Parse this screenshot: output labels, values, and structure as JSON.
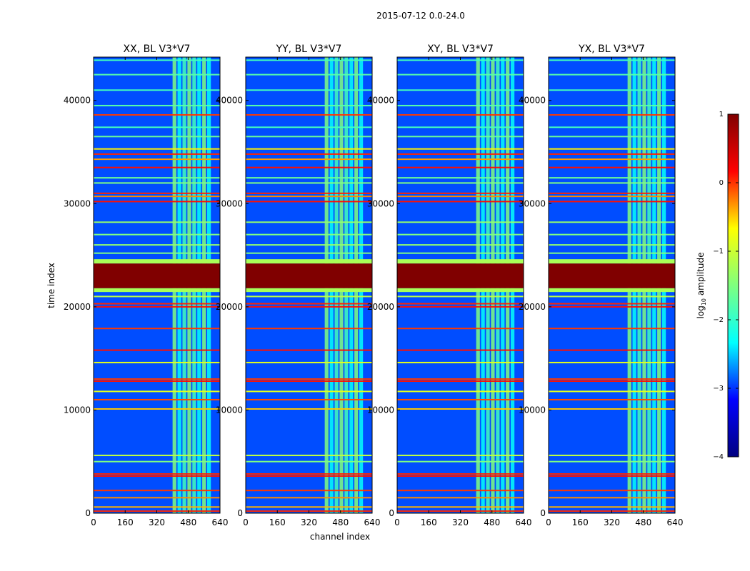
{
  "chart_data": {
    "type": "heatmap",
    "suptitle": "2015-07-12 0.0-24.0",
    "xlabel": "channel index",
    "ylabel": "time index",
    "xlim": [
      0,
      640
    ],
    "ylim": [
      0,
      44200
    ],
    "xticks": [
      0,
      160,
      320,
      480,
      640
    ],
    "yticks": [
      0,
      10000,
      20000,
      30000,
      40000
    ],
    "panels": [
      {
        "title": "XX, BL V3*V7"
      },
      {
        "title": "YY, BL V3*V7"
      },
      {
        "title": "XY, BL V3*V7"
      },
      {
        "title": "YX, BL V3*V7"
      }
    ],
    "colorbar": {
      "label": "log",
      "label_sub": "10",
      "label_rest": " amplitude",
      "range": [
        -4,
        1
      ],
      "ticks": [
        1,
        0,
        -1,
        -2,
        -3,
        -4
      ],
      "tick_labels": [
        "1",
        "0",
        "−1",
        "−2",
        "−3",
        "−4"
      ],
      "colormap": "jet",
      "colormap_stops": [
        "#000080",
        "#0000ff",
        "#00ffff",
        "#7fff7f",
        "#ffff00",
        "#ff0000",
        "#800000"
      ]
    },
    "features": {
      "background_level": -3.0,
      "saturated_time_range": [
        21800,
        24200
      ],
      "saturated_level": 1,
      "rfi_channel_band": [
        400,
        600
      ],
      "rfi_channel_band_level": -1.8,
      "horizontal_flag_bands": [
        {
          "t": 200,
          "level": 0.2
        },
        {
          "t": 600,
          "level": -0.5
        },
        {
          "t": 1500,
          "level": -0.3
        },
        {
          "t": 2200,
          "level": 0.1
        },
        {
          "t": 3600,
          "level": 0.3
        },
        {
          "t": 3800,
          "level": 0.2
        },
        {
          "t": 5000,
          "level": -1.5
        },
        {
          "t": 5600,
          "level": -1.2
        },
        {
          "t": 10100,
          "level": -0.6
        },
        {
          "t": 11000,
          "level": 0.0
        },
        {
          "t": 11800,
          "level": -1.0
        },
        {
          "t": 12800,
          "level": 0.3
        },
        {
          "t": 13000,
          "level": 0.1
        },
        {
          "t": 14600,
          "level": -1.0
        },
        {
          "t": 15800,
          "level": 0.3
        },
        {
          "t": 17900,
          "level": 0.1
        },
        {
          "t": 20000,
          "level": 0.3
        },
        {
          "t": 20300,
          "level": 0.2
        },
        {
          "t": 21000,
          "level": -1.2
        },
        {
          "t": 21500,
          "level": -1.5
        },
        {
          "t": 24400,
          "level": -1.6
        },
        {
          "t": 25200,
          "level": -1.5
        },
        {
          "t": 26000,
          "level": -1.4
        },
        {
          "t": 27000,
          "level": -1.5
        },
        {
          "t": 28200,
          "level": -1.4
        },
        {
          "t": 30200,
          "level": 0.3
        },
        {
          "t": 30700,
          "level": -0.3
        },
        {
          "t": 31000,
          "level": 0.2
        },
        {
          "t": 32000,
          "level": -1.5
        },
        {
          "t": 32500,
          "level": -1.6
        },
        {
          "t": 33500,
          "level": 0.3
        },
        {
          "t": 34300,
          "level": -0.4
        },
        {
          "t": 34800,
          "level": 0.2
        },
        {
          "t": 35300,
          "level": -0.8
        },
        {
          "t": 36500,
          "level": -1.6
        },
        {
          "t": 37400,
          "level": -1.8
        },
        {
          "t": 38600,
          "level": 0.1
        },
        {
          "t": 39500,
          "level": -1.7
        },
        {
          "t": 41000,
          "level": -1.8
        },
        {
          "t": 42500,
          "level": -1.7
        },
        {
          "t": 43900,
          "level": -1.8
        }
      ]
    }
  }
}
